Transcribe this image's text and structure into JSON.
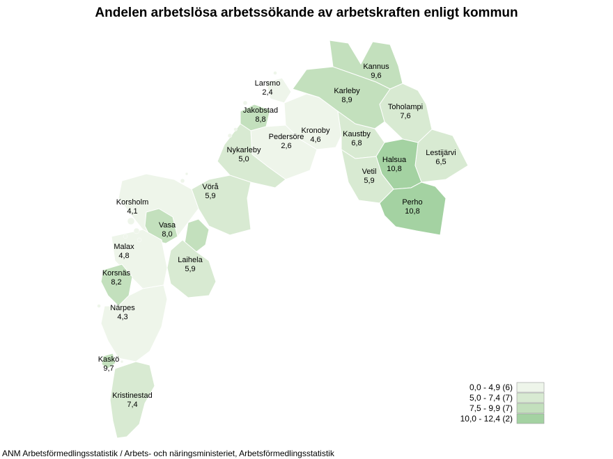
{
  "title": "Andelen arbetslösa arbetssökande av arbetskraften enligt kommun",
  "source": "ANM Arbetsförmedlingsstatistik / Arbets- och näringsministeriet, Arbetsförmedlingsstatistik",
  "colors": {
    "c1": "#eef5ea",
    "c2": "#d8ead2",
    "c3": "#c3e0bd",
    "c4": "#a4d2a2"
  },
  "legend": [
    {
      "label": "0,0 - 4,9 (6)",
      "color": "#eef5ea"
    },
    {
      "label": "5,0 - 7,4 (7)",
      "color": "#d8ead2"
    },
    {
      "label": "7,5 - 9,9 (7)",
      "color": "#c3e0bd"
    },
    {
      "label": "10,0 - 12,4 (2)",
      "color": "#a4d2a2"
    }
  ],
  "municipalities": [
    {
      "name": "Kannus",
      "value": "9,6"
    },
    {
      "name": "Larsmo",
      "value": "2,4"
    },
    {
      "name": "Karleby",
      "value": "8,9"
    },
    {
      "name": "Toholampi",
      "value": "7,6"
    },
    {
      "name": "Jakobstad",
      "value": "8,8"
    },
    {
      "name": "Kronoby",
      "value": "4,6"
    },
    {
      "name": "Pedersöre",
      "value": "2,6"
    },
    {
      "name": "Kaustby",
      "value": "6,8"
    },
    {
      "name": "Lestijärvi",
      "value": "6,5"
    },
    {
      "name": "Nykarleby",
      "value": "5,0"
    },
    {
      "name": "Halsua",
      "value": "10,8"
    },
    {
      "name": "Vetil",
      "value": "5,9"
    },
    {
      "name": "Vörå",
      "value": "5,9"
    },
    {
      "name": "Perho",
      "value": "10,8"
    },
    {
      "name": "Korsholm",
      "value": "4,1"
    },
    {
      "name": "Vasa",
      "value": "8,0"
    },
    {
      "name": "Malax",
      "value": "4,8"
    },
    {
      "name": "Laihela",
      "value": "5,9"
    },
    {
      "name": "Korsnäs",
      "value": "8,2"
    },
    {
      "name": "Närpes",
      "value": "4,3"
    },
    {
      "name": "Kaskö",
      "value": "9,7"
    },
    {
      "name": "Kristinestad",
      "value": "7,4"
    }
  ]
}
